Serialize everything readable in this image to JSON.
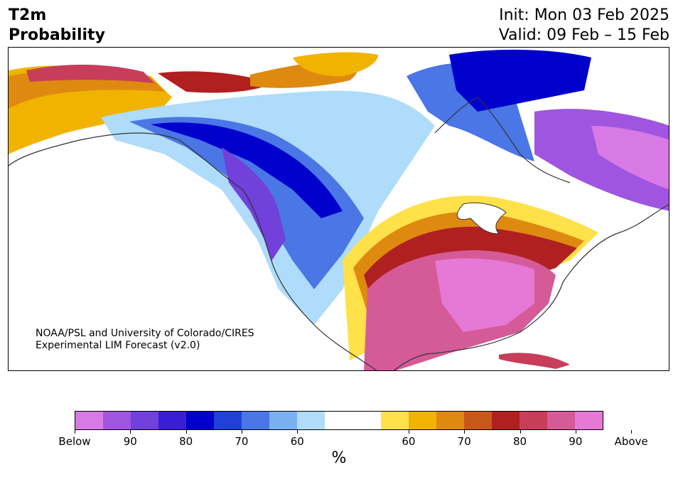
{
  "header": {
    "title_line1": "T2m",
    "title_line2": "Probability",
    "init_text": "Init: Mon 03 Feb 2025",
    "valid_text": "Valid: 09 Feb – 15 Feb"
  },
  "map": {
    "region": "North America",
    "variable": "2-m temperature tercile probability",
    "credit_line1": "NOAA/PSL and University of Colorado/CIRES",
    "credit_line2": "Experimental LIM Forecast (v2.0)"
  },
  "colorbar": {
    "segments": [
      {
        "color": "#d77ae6",
        "category": "below"
      },
      {
        "color": "#9f55e0",
        "category": "below"
      },
      {
        "color": "#7240db",
        "category": "below"
      },
      {
        "color": "#3a1ed6",
        "category": "below"
      },
      {
        "color": "#0000cc",
        "category": "below"
      },
      {
        "color": "#2040d8",
        "category": "below"
      },
      {
        "color": "#4a76e6",
        "category": "below"
      },
      {
        "color": "#78b0f2",
        "category": "below"
      },
      {
        "color": "#aedcfa",
        "category": "below"
      },
      {
        "color": "#ffffff",
        "category": "neutral"
      },
      {
        "color": "#ffe14a",
        "category": "above"
      },
      {
        "color": "#f0b400",
        "category": "above"
      },
      {
        "color": "#de8a10",
        "category": "above"
      },
      {
        "color": "#c8581a",
        "category": "above"
      },
      {
        "color": "#b02020",
        "category": "above"
      },
      {
        "color": "#c83d5a",
        "category": "above"
      },
      {
        "color": "#d55a98",
        "category": "above"
      },
      {
        "color": "#e678d6",
        "category": "above"
      }
    ],
    "tick_labels": [
      "Below",
      "90",
      "80",
      "70",
      "60",
      "60",
      "70",
      "80",
      "90",
      "Above"
    ],
    "unit": "%"
  }
}
